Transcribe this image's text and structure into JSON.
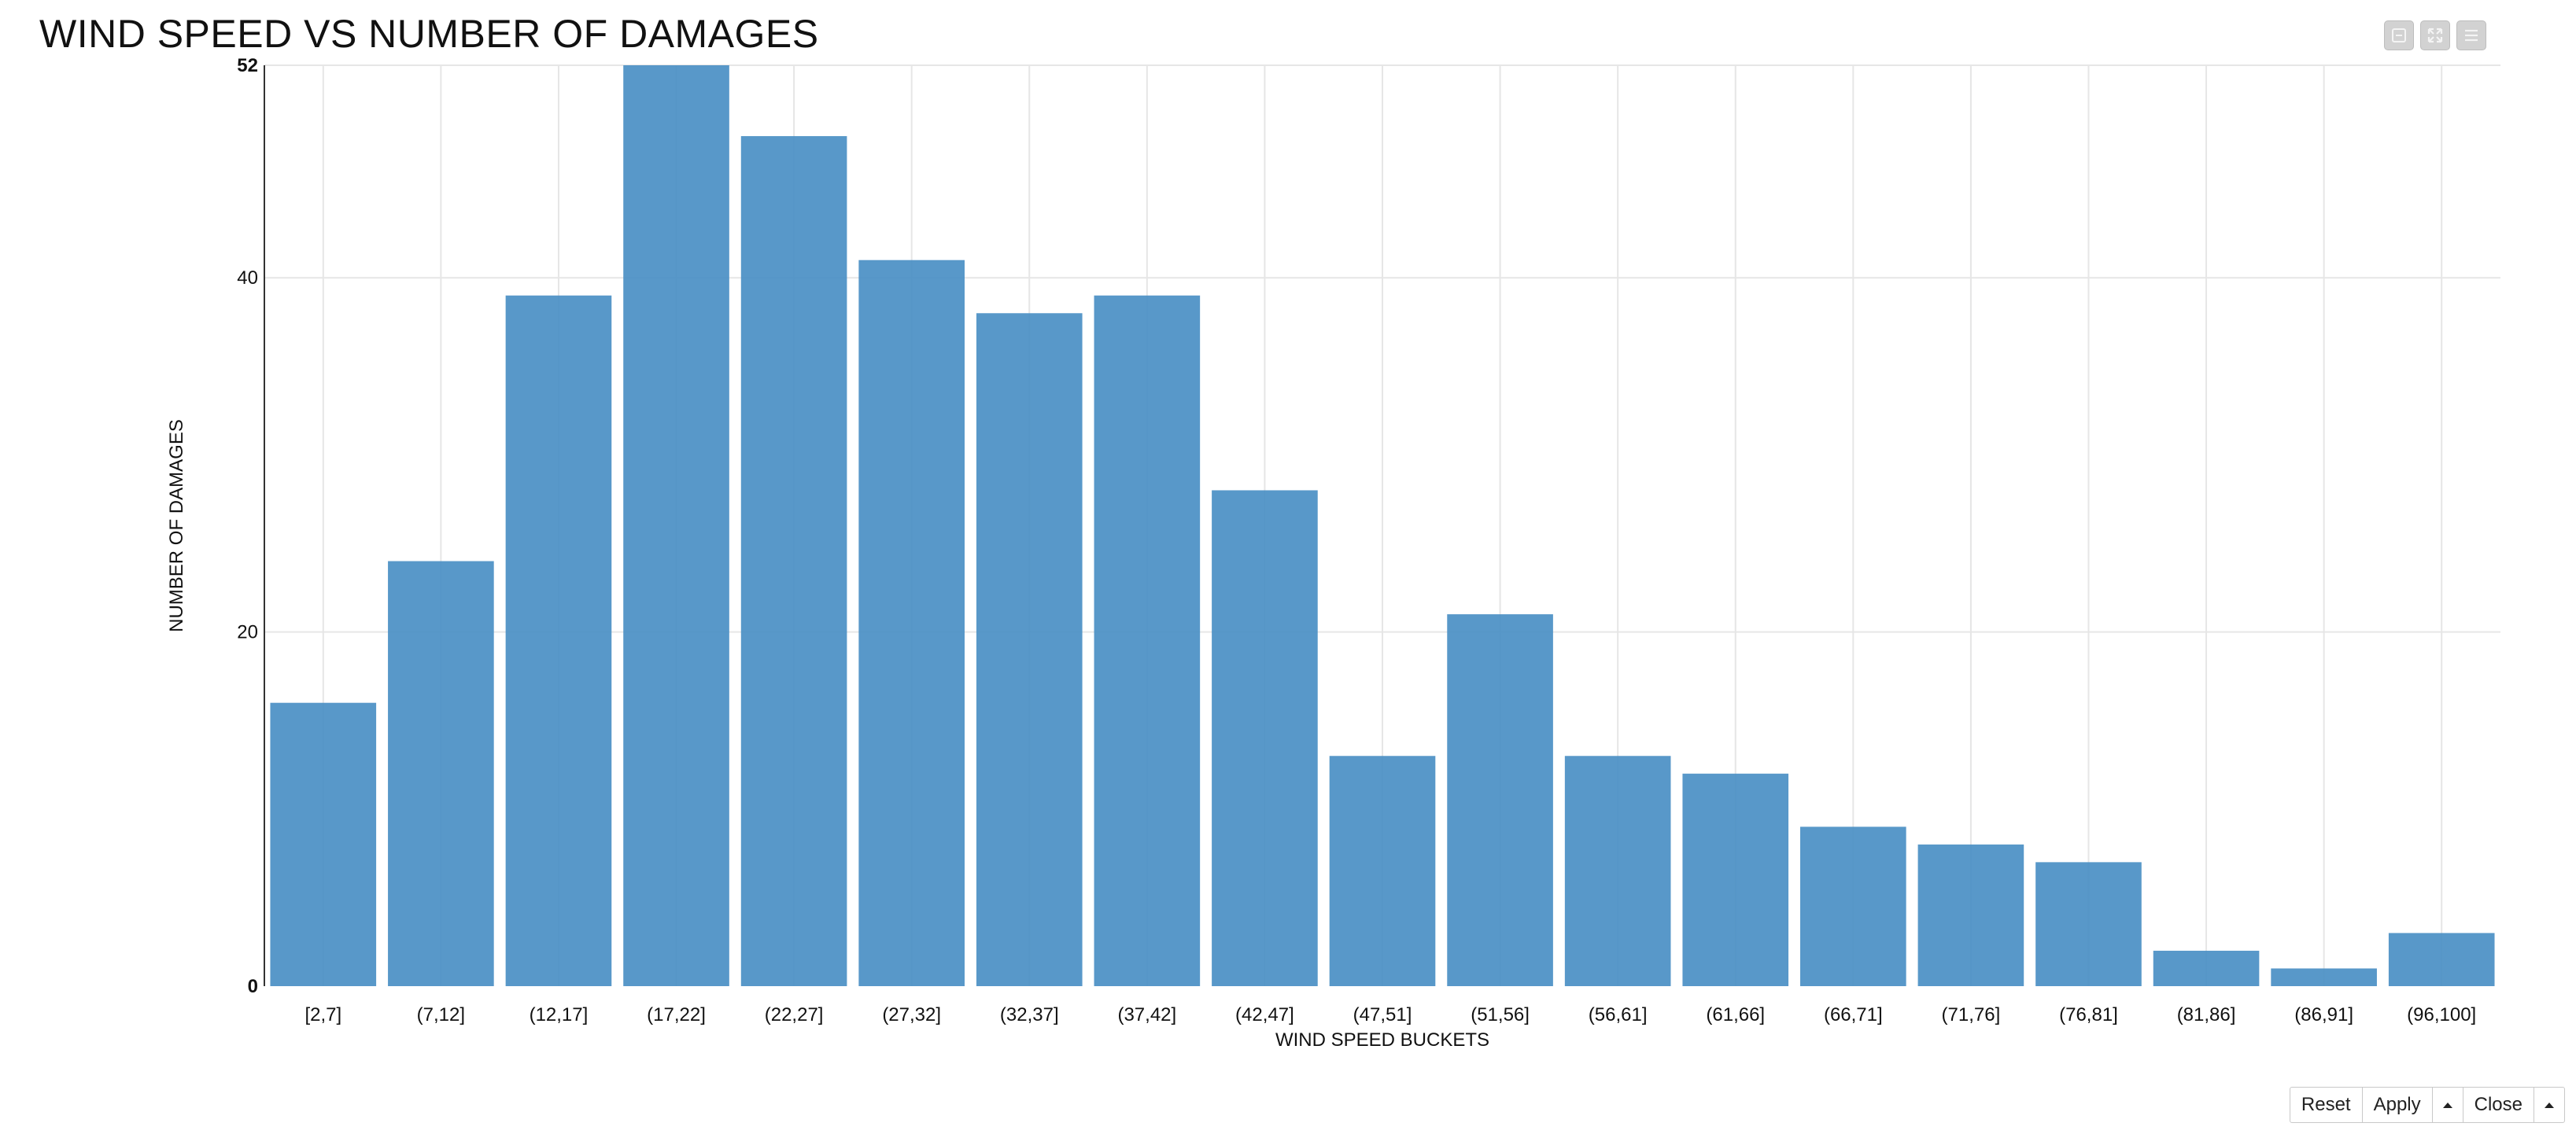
{
  "window": {
    "title": "WIND SPEED VS NUMBER OF DAMAGES"
  },
  "toolbar": {
    "icons": [
      "minimize-icon",
      "expand-icon",
      "menu-icon"
    ]
  },
  "footer": {
    "reset_label": "Reset",
    "apply_label": "Apply",
    "close_label": "Close"
  },
  "colors": {
    "bar": "#4a8fc4",
    "grid": "#e6e6e6",
    "axis": "#333333"
  },
  "chart_data": {
    "type": "bar",
    "title": "WIND SPEED VS NUMBER OF DAMAGES",
    "xlabel": "WIND SPEED BUCKETS",
    "ylabel": "NUMBER OF DAMAGES",
    "categories": [
      "[2,7]",
      "(7,12]",
      "(12,17]",
      "(17,22]",
      "(22,27]",
      "(27,32]",
      "(32,37]",
      "(37,42]",
      "(42,47]",
      "(47,51]",
      "(51,56]",
      "(56,61]",
      "(61,66]",
      "(66,71]",
      "(71,76]",
      "(76,81]",
      "(81,86]",
      "(86,91]",
      "(96,100]"
    ],
    "values": [
      16,
      24,
      39,
      52,
      48,
      41,
      38,
      39,
      28,
      13,
      21,
      13,
      12,
      9,
      8,
      7,
      2,
      1,
      3
    ],
    "ylim": [
      0,
      52
    ],
    "yticks": [
      "0",
      "20",
      "40",
      "52"
    ],
    "grid": true,
    "legend": "none"
  }
}
